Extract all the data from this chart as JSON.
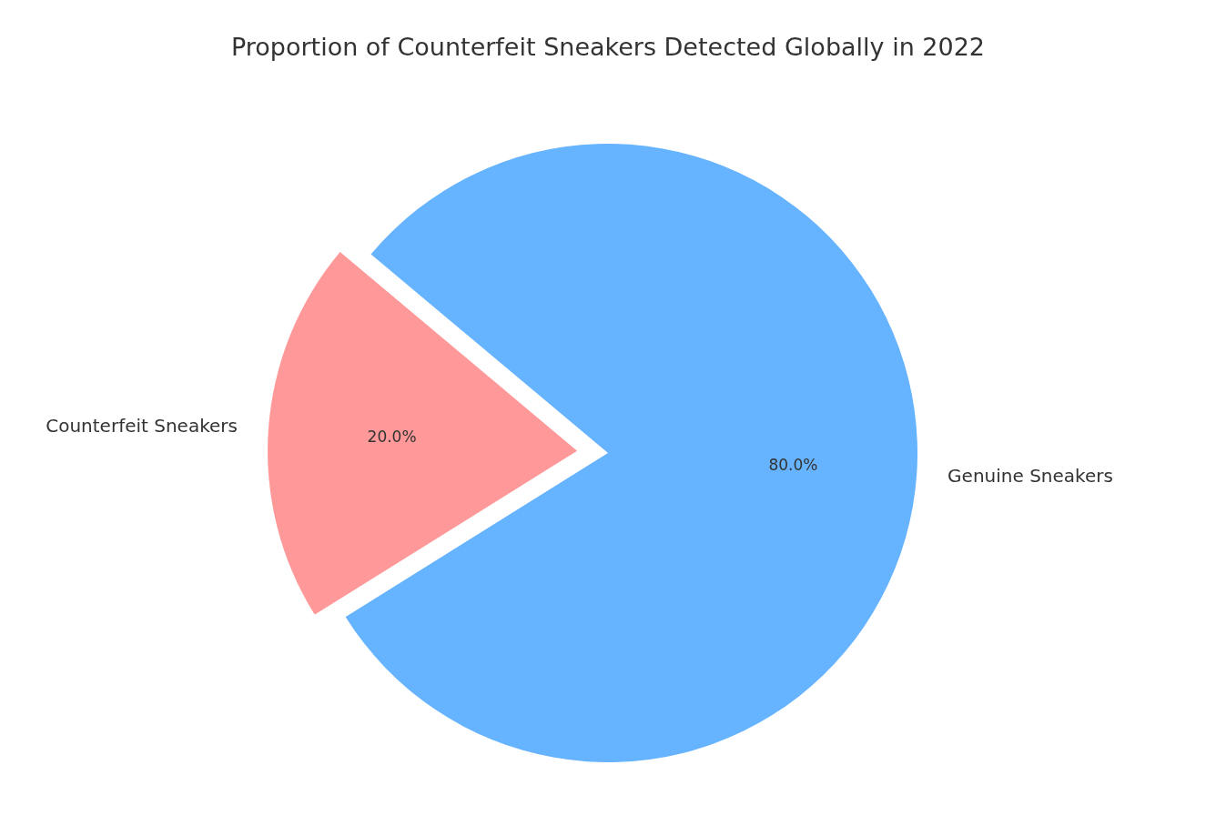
{
  "chart_data": {
    "type": "pie",
    "title": "Proportion of Counterfeit Sneakers Detected Globally in 2022",
    "categories": [
      "Counterfeit Sneakers",
      "Genuine Sneakers"
    ],
    "values": [
      20,
      80
    ],
    "colors": [
      "#ff9999",
      "#66b3ff"
    ],
    "value_labels": [
      "20.0%",
      "80.0%"
    ]
  }
}
